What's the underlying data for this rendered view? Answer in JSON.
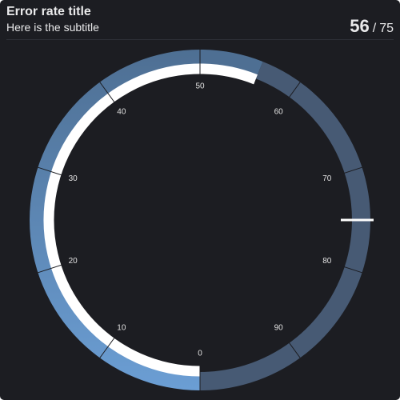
{
  "header": {
    "title": "Error rate title",
    "subtitle": "Here is the subtitle",
    "value": "56",
    "separator": "/",
    "target": "75"
  },
  "chart_data": {
    "type": "radial-gauge",
    "min": 0,
    "max": 100,
    "value": 56,
    "target": 75,
    "tick_labels": [
      "0",
      "10",
      "20",
      "30",
      "40",
      "50",
      "60",
      "70",
      "80",
      "90"
    ],
    "colors": {
      "background": "#1c1d22",
      "band_filled_start": "#6b9ed4",
      "band_filled_end": "#4e6f93",
      "band_remaining": "#475a74",
      "value_arc": "#ffffff",
      "target_marker": "#ffffff",
      "tick": "#1c1d22"
    }
  }
}
